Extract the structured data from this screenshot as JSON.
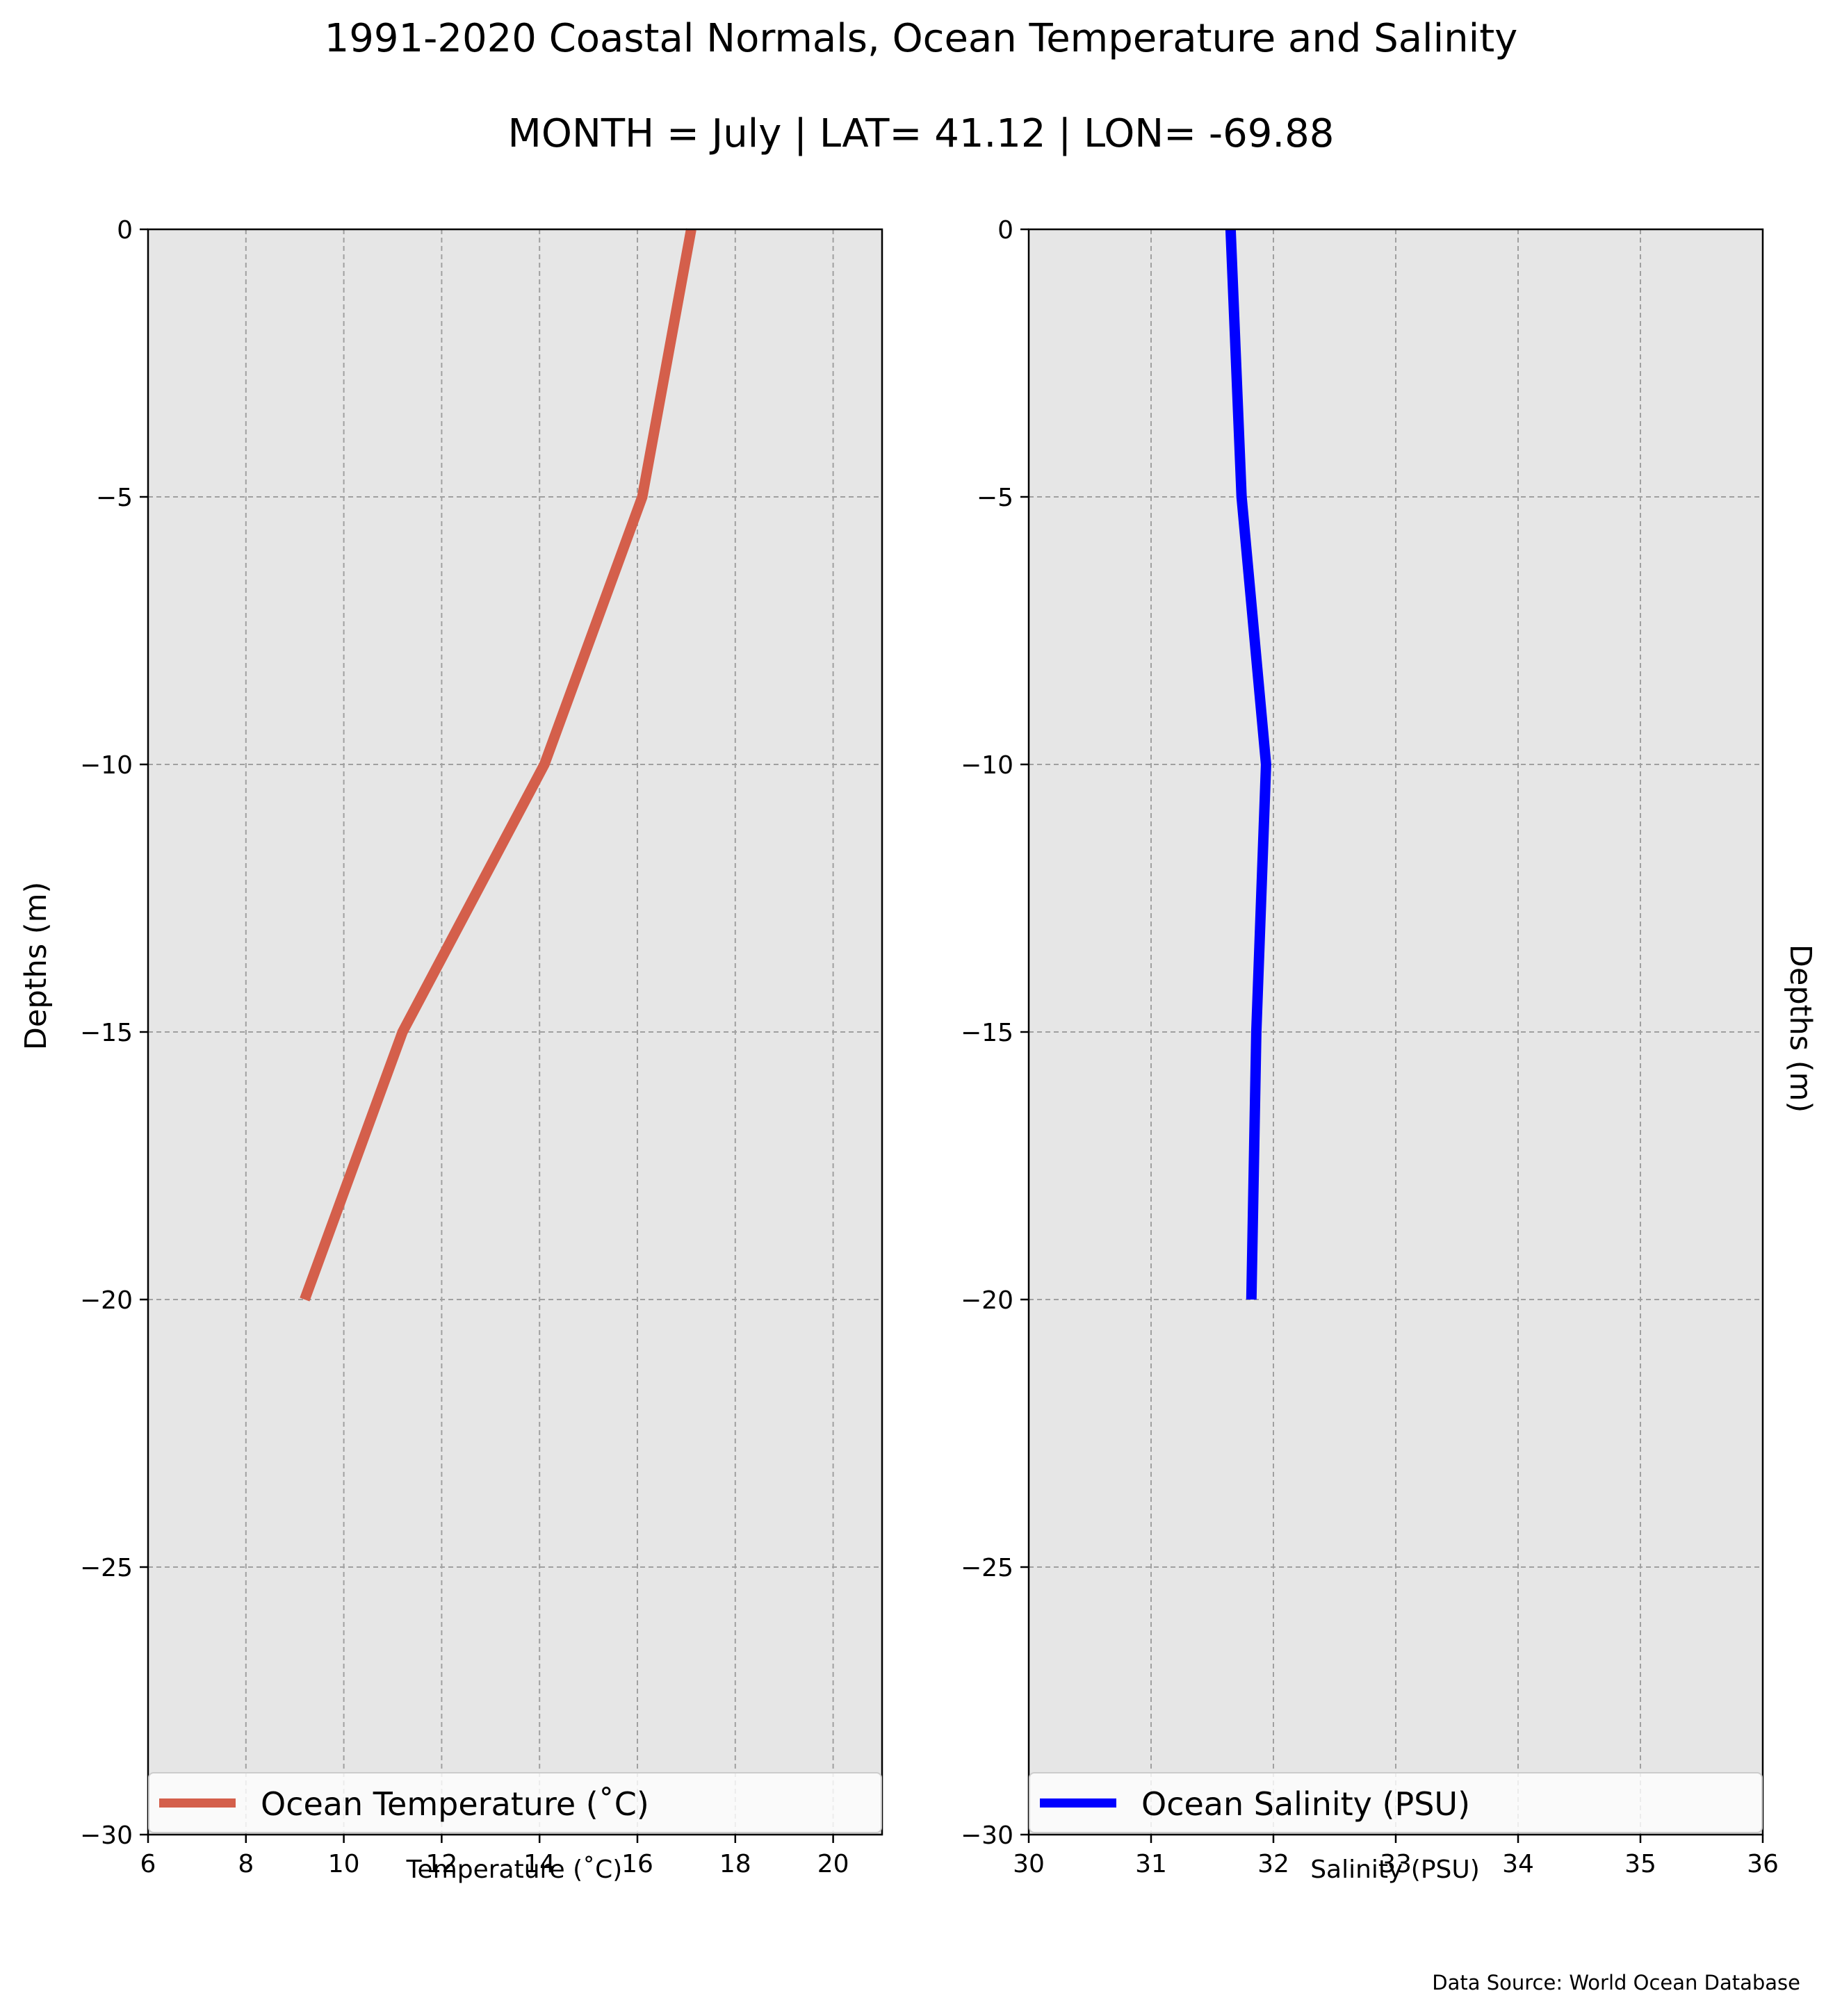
{
  "figure": {
    "title": "1991-2020 Coastal Normals, Ocean Temperature and Salinity",
    "subtitle": "MONTH = July | LAT= 41.12 | LON= -69.88",
    "source": "Data Source: World Ocean Database"
  },
  "chart_data": [
    {
      "type": "line",
      "xlabel": "Temperature ($^\\circ$C)",
      "xlabel_display": "Temperature (˚C)",
      "ylabel": "Depths (m)",
      "xlim": [
        6,
        21
      ],
      "ylim": [
        -30,
        0
      ],
      "xticks": [
        6,
        8,
        10,
        12,
        14,
        16,
        18,
        20
      ],
      "yticks": [
        0,
        -5,
        -10,
        -15,
        -20,
        -25,
        -30
      ],
      "ytick_labels": [
        "0",
        "−5",
        "−10",
        "−15",
        "−20",
        "−25",
        "−30"
      ],
      "grid": true,
      "legend_placement": "lower-center",
      "series": [
        {
          "name": "Ocean Temperature (˚C)",
          "color": "#d45f4b",
          "x": [
            17.1,
            16.1,
            14.1,
            11.2,
            9.2
          ],
          "y": [
            0,
            -5,
            -10,
            -15,
            -20
          ]
        }
      ]
    },
    {
      "type": "line",
      "xlabel": "Salinity (PSU)",
      "ylabel": "Depths (m)",
      "xlim": [
        30,
        36
      ],
      "ylim": [
        -30,
        0
      ],
      "xticks": [
        30,
        31,
        32,
        33,
        34,
        35,
        36
      ],
      "yticks": [
        0,
        -5,
        -10,
        -15,
        -20,
        -25,
        -30
      ],
      "ytick_labels": [
        "0",
        "−5",
        "−10",
        "−15",
        "−20",
        "−25",
        "−30"
      ],
      "grid": true,
      "legend_placement": "lower-center",
      "series": [
        {
          "name": "Ocean Salinity (PSU)",
          "color": "#0000ff",
          "x": [
            31.65,
            31.74,
            31.94,
            31.86,
            31.82
          ],
          "y": [
            0,
            -5,
            -10,
            -15,
            -20
          ]
        }
      ]
    }
  ]
}
